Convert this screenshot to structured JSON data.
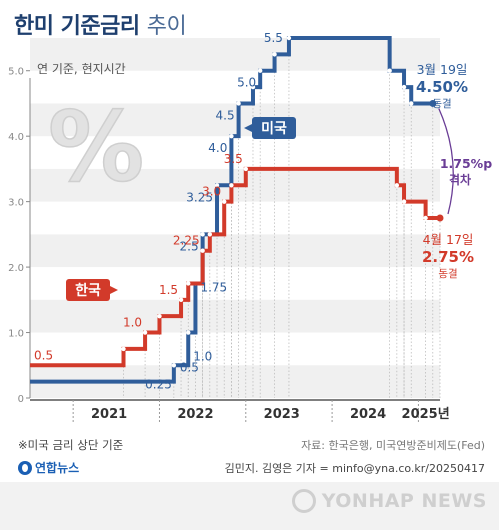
{
  "header": {
    "title_main": "한미 기준금리",
    "title_thin": "추이",
    "subtitle": "연 기준, 현지시간"
  },
  "footer": {
    "note": "※미국 금리 상단 기준",
    "source": "자료: 한국은행, 미국연방준비제도(Fed)",
    "credit": "김민지. 김영은 기자 = minfo@yna.co.kr/20250417",
    "brand": "연합뉴스",
    "watermark": "YONHAP NEWS"
  },
  "colors": {
    "us": "#2f5d9a",
    "korea": "#d23a2a",
    "gap": "#6a3d96",
    "band": "#f0f0f0",
    "axis": "#888888"
  },
  "icons": {
    "percent": "percent-sign-icon",
    "brand": "yonhap-logo-icon"
  },
  "chart_data": {
    "type": "line",
    "step": true,
    "x_unit": "year",
    "xlim": [
      "2020-07",
      "2025-04"
    ],
    "ylim": [
      0,
      5.5
    ],
    "yticks": [
      0,
      "1.0",
      "2.0",
      "3.0",
      "4.0",
      "5.0"
    ],
    "xticks": [
      {
        "label": "2021",
        "at": "2021-06"
      },
      {
        "label": "2022",
        "at": "2022-06"
      },
      {
        "label": "2023",
        "at": "2023-06"
      },
      {
        "label": "2024",
        "at": "2024-06"
      },
      {
        "label": "2025년",
        "at": "2025-02"
      }
    ],
    "series": [
      {
        "name": "미국",
        "key": "us",
        "points": [
          {
            "x": "2020-07",
            "y": 0.25
          },
          {
            "x": "2022-03",
            "y": 0.5,
            "label": "0.5"
          },
          {
            "x": "2022-05",
            "y": 1.0,
            "label": "1.0"
          },
          {
            "x": "2022-06",
            "y": 1.75,
            "label": "1.75"
          },
          {
            "x": "2022-07",
            "y": 2.5,
            "label": "2.5"
          },
          {
            "x": "2022-09",
            "y": 3.25,
            "label": "3.25"
          },
          {
            "x": "2022-11",
            "y": 4.0,
            "label": "4.0"
          },
          {
            "x": "2022-12",
            "y": 4.5,
            "label": "4.5"
          },
          {
            "x": "2023-02",
            "y": 4.75
          },
          {
            "x": "2023-03",
            "y": 5.0,
            "label": "5.0"
          },
          {
            "x": "2023-05",
            "y": 5.25
          },
          {
            "x": "2023-07",
            "y": 5.5,
            "label": "5.5"
          },
          {
            "x": "2024-09",
            "y": 5.0
          },
          {
            "x": "2024-11",
            "y": 4.75
          },
          {
            "x": "2024-12",
            "y": 4.5
          },
          {
            "x": "2025-03",
            "y": 4.5
          }
        ],
        "start_label": "0.25"
      },
      {
        "name": "한국",
        "key": "korea",
        "points": [
          {
            "x": "2020-07",
            "y": 0.5,
            "label": "0.5"
          },
          {
            "x": "2021-08",
            "y": 0.75
          },
          {
            "x": "2021-11",
            "y": 1.0,
            "label": "1.0"
          },
          {
            "x": "2022-01",
            "y": 1.25
          },
          {
            "x": "2022-04",
            "y": 1.5,
            "label": "1.5"
          },
          {
            "x": "2022-05",
            "y": 1.75
          },
          {
            "x": "2022-07",
            "y": 2.25,
            "label": "2.25"
          },
          {
            "x": "2022-08",
            "y": 2.5
          },
          {
            "x": "2022-10",
            "y": 3.0,
            "label": "3.0"
          },
          {
            "x": "2022-11",
            "y": 3.25
          },
          {
            "x": "2023-01",
            "y": 3.5,
            "label": "3.5"
          },
          {
            "x": "2024-10",
            "y": 3.25
          },
          {
            "x": "2024-11",
            "y": 3.0
          },
          {
            "x": "2025-02",
            "y": 2.75
          },
          {
            "x": "2025-04",
            "y": 2.75
          }
        ]
      }
    ],
    "annotations": {
      "us_date": "3월 19일",
      "us_value": "4.50%",
      "us_status": "동결",
      "korea_date": "4월 17일",
      "korea_value": "2.75%",
      "korea_status": "동결",
      "gap_value": "1.75%p",
      "gap_label": "격차"
    }
  }
}
